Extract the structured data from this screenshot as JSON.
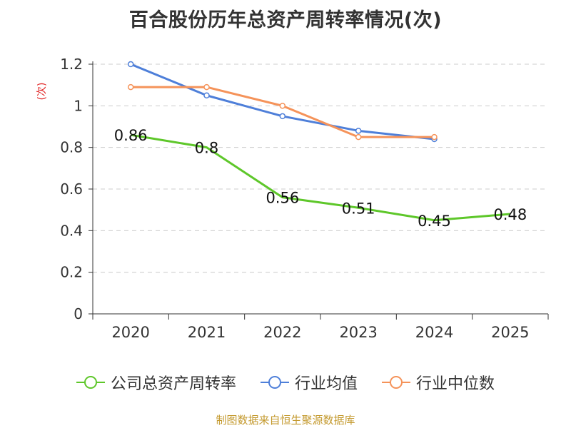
{
  "chart_data": {
    "type": "line",
    "title": "百合股份历年总资产周转率情况(次)",
    "ylabel": "(次)",
    "xlabel": "",
    "categories": [
      "2020",
      "2021",
      "2022",
      "2023",
      "2024",
      "2025"
    ],
    "ylim": [
      0,
      1.2
    ],
    "yticks": [
      "0",
      "0.2",
      "0.4",
      "0.6",
      "0.8",
      "1",
      "1.2"
    ],
    "grid": true,
    "legend_position": "bottom",
    "series": [
      {
        "name": "公司总资产周转率",
        "color": "#5ec72a",
        "values": [
          0.86,
          0.8,
          0.56,
          0.51,
          0.45,
          0.48
        ],
        "labels": [
          "0.86",
          "0.8",
          "0.56",
          "0.51",
          "0.45",
          "0.48"
        ],
        "show_labels": true
      },
      {
        "name": "行业均值",
        "color": "#4e7fd9",
        "values": [
          1.2,
          1.05,
          0.95,
          0.88,
          0.84,
          null
        ],
        "show_labels": false
      },
      {
        "name": "行业中位数",
        "color": "#f5935a",
        "values": [
          1.09,
          1.09,
          1.0,
          0.85,
          0.85,
          null
        ],
        "show_labels": false
      }
    ]
  },
  "source_text": "制图数据来自恒生聚源数据库"
}
